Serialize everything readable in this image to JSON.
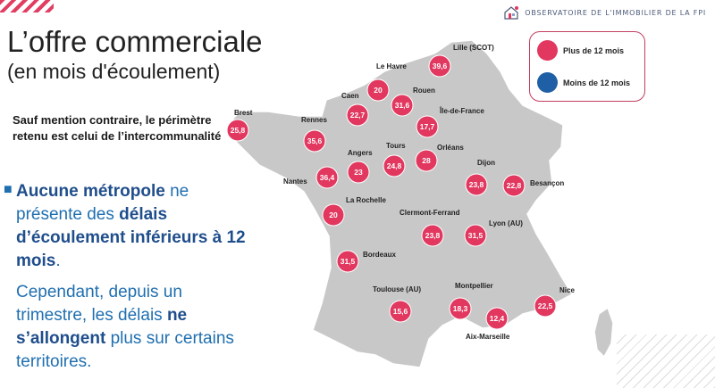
{
  "header": {
    "brand": "OBSERVATOIRE DE L'IMMOBILIER DE LA FPI",
    "title": "L’offre commerciale",
    "subtitle": "(en mois d'écoulement)"
  },
  "note": "Sauf mention contraire, le périmètre retenu est celui de l’intercommunalité",
  "para1": {
    "p1_bold": "Aucune métropole",
    "p1_a": " ne présente des ",
    "p1_bold2": "délais d’écoulement inférieurs à 12 mois",
    "p1_end": "."
  },
  "para2": {
    "p2_a": "Cependant, depuis un trimestre, les délais ",
    "p2_bold": "ne s’allongent",
    "p2_b": " plus sur certains territoires."
  },
  "legend": {
    "over": {
      "label": "Plus de 12 mois",
      "color": "#e2375f"
    },
    "under": {
      "label": "Moins de 12 mois",
      "color": "#1f5fa6"
    }
  },
  "colors": {
    "map_fill": "#c8c8c8",
    "map_stroke": "#ffffff",
    "marker": "#e2375f"
  },
  "cities": [
    {
      "name": "Lille (SCOT)",
      "value": "39,6"
    },
    {
      "name": "Le Havre",
      "value": "20"
    },
    {
      "name": "Caen",
      "value": "22,7"
    },
    {
      "name": "Rouen",
      "value": "31,6"
    },
    {
      "name": "Île-de-France",
      "value": "17,7"
    },
    {
      "name": "Brest",
      "value": "25,8"
    },
    {
      "name": "Rennes",
      "value": "35,6"
    },
    {
      "name": "Angers",
      "value": "23"
    },
    {
      "name": "Tours",
      "value": "24,8"
    },
    {
      "name": "Orléans",
      "value": "28"
    },
    {
      "name": "Nantes",
      "value": "36,4"
    },
    {
      "name": "Dijon",
      "value": "23,8"
    },
    {
      "name": "Besançon",
      "value": "22,8"
    },
    {
      "name": "La Rochelle",
      "value": "20"
    },
    {
      "name": "Clermont-Ferrand",
      "value": "23,8"
    },
    {
      "name": "Lyon (AU)",
      "value": "31,5"
    },
    {
      "name": "Bordeaux",
      "value": "31,5"
    },
    {
      "name": "Toulouse (AU)",
      "value": "15,6"
    },
    {
      "name": "Montpellier",
      "value": "18,3"
    },
    {
      "name": "Aix-Marseille",
      "value": "12,4"
    },
    {
      "name": "Nice",
      "value": "22,5"
    }
  ]
}
